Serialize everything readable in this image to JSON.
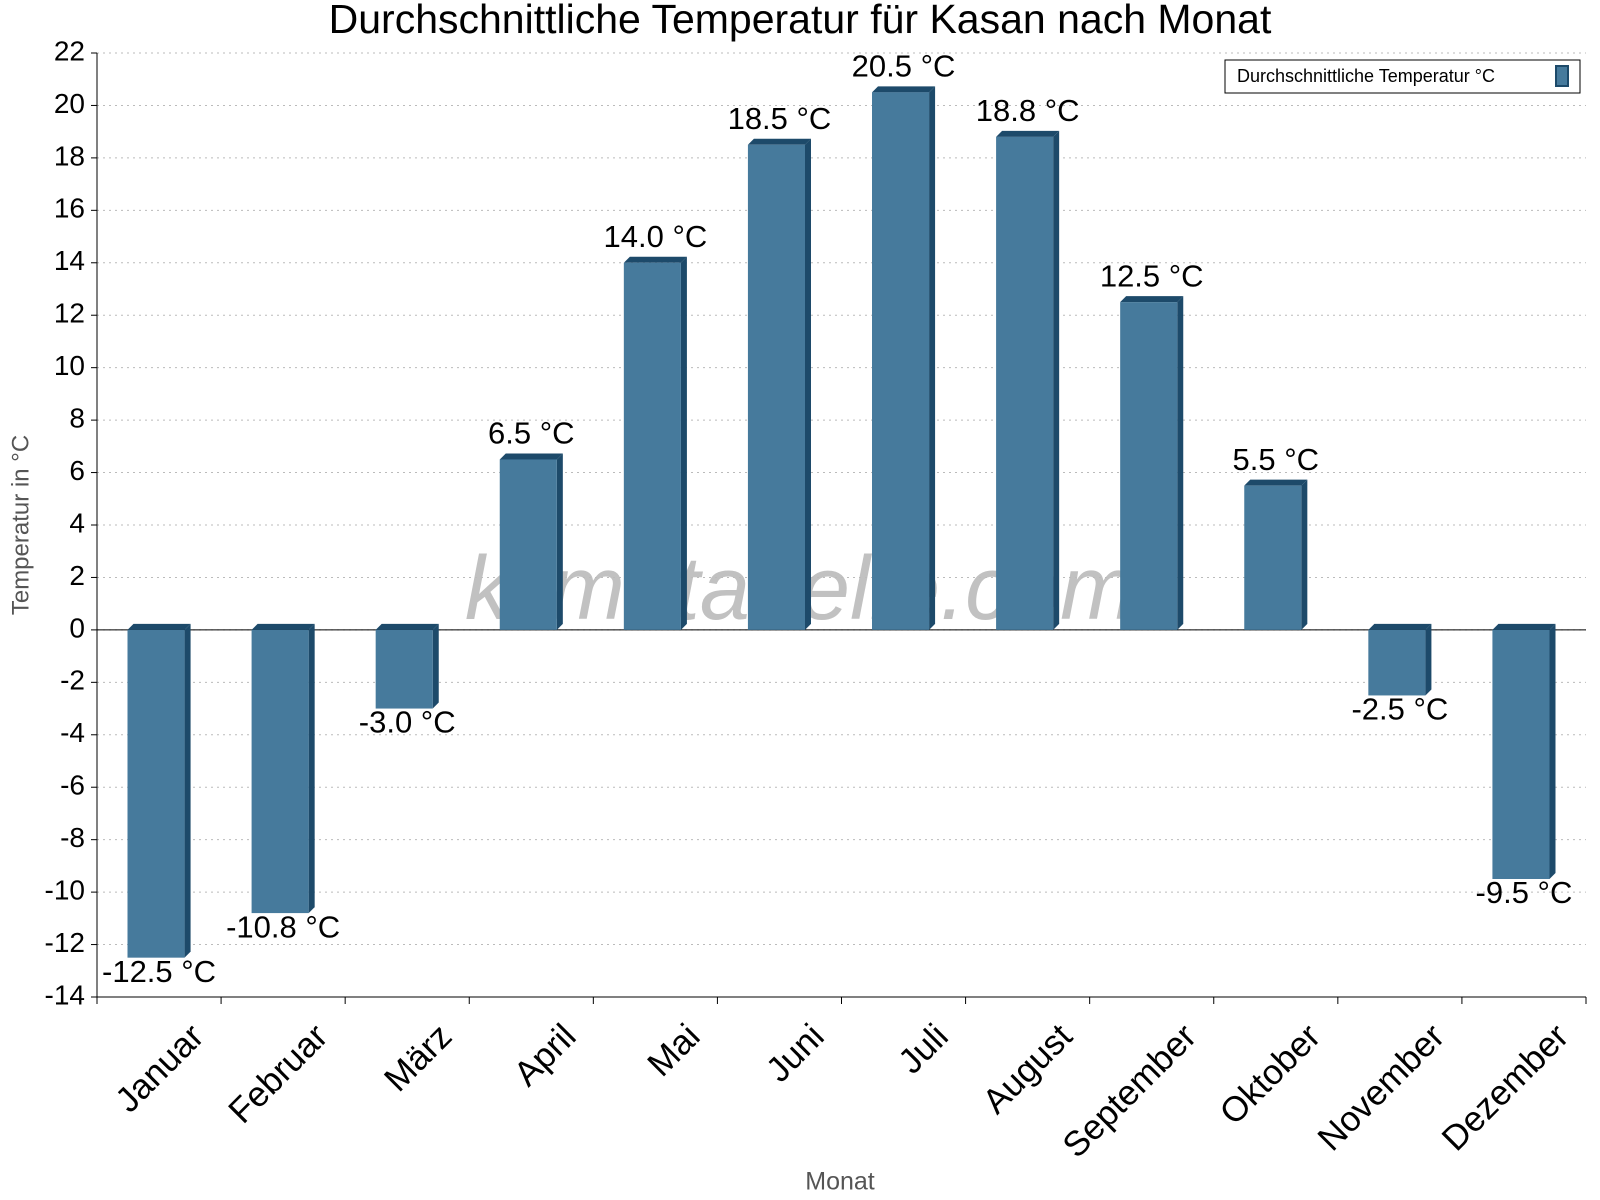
{
  "chart_data": {
    "type": "bar",
    "title": "Durchschnittliche Temperatur für Kasan nach Monat",
    "x_label": "Monat",
    "y_label": "Temperatur in °C",
    "watermark": "klimatabelle.com",
    "categories": [
      "Januar",
      "Februar",
      "März",
      "April",
      "Mai",
      "Juni",
      "Juli",
      "August",
      "September",
      "Oktober",
      "November",
      "Dezember"
    ],
    "series": [
      {
        "name": "Durchschnittliche Temperatur °C",
        "color": "#467a9c",
        "values": [
          -12.5,
          -10.8,
          -3.0,
          6.5,
          14.0,
          18.5,
          20.5,
          18.8,
          12.5,
          5.5,
          -2.5,
          -9.5
        ],
        "value_labels": [
          "-12.5 °C",
          "-10.8 °C",
          "-3.0 °C",
          "6.5 °C",
          "14.0 °C",
          "18.5 °C",
          "20.5 °C",
          "18.8 °C",
          "12.5 °C",
          "5.5 °C",
          "-2.5 °C",
          "-9.5 °C"
        ]
      }
    ],
    "ylim": [
      -14,
      22
    ],
    "yticks": [
      -14,
      -12,
      -10,
      -8,
      -6,
      -4,
      -2,
      0,
      2,
      4,
      6,
      8,
      10,
      12,
      14,
      16,
      18,
      20,
      22
    ],
    "grid": true,
    "legend": "top-right"
  }
}
